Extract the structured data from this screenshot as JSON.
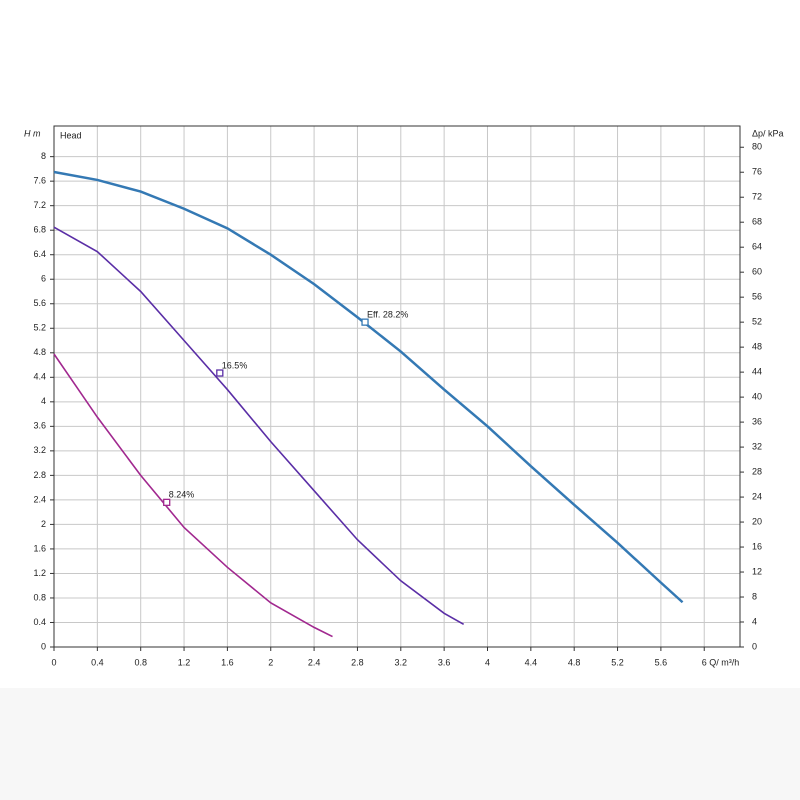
{
  "chart_data": {
    "type": "line",
    "title": "Head",
    "x_label": "Q/ m³/h",
    "y_label": "H m",
    "y2_label": "Δp/ kPa",
    "xlim": [
      0,
      6.33
    ],
    "ylim": [
      0,
      8.5
    ],
    "y2lim": [
      0,
      83.4
    ],
    "xticks": [
      0,
      0.4,
      0.8,
      1.2,
      1.6,
      2,
      2.4,
      2.8,
      3.2,
      3.6,
      4,
      4.4,
      4.8,
      5.2,
      5.6,
      6
    ],
    "yticks": [
      0,
      0.4,
      0.8,
      1.2,
      1.6,
      2,
      2.4,
      2.8,
      3.2,
      3.6,
      4,
      4.4,
      4.8,
      5.2,
      5.6,
      6,
      6.4,
      6.8,
      7.2,
      7.6,
      8
    ],
    "y2ticks": [
      0,
      4,
      8,
      12,
      16,
      20,
      24,
      28,
      32,
      36,
      40,
      44,
      48,
      52,
      56,
      60,
      64,
      68,
      72,
      76,
      80
    ],
    "grid": true,
    "series": [
      {
        "name": "Eff. 28.2%",
        "color": "#3479b4",
        "x": [
          0,
          0.4,
          0.8,
          1.2,
          1.6,
          2,
          2.4,
          2.8,
          3.2,
          3.6,
          4,
          4.4,
          4.8,
          5.2,
          5.6,
          5.8
        ],
        "y": [
          7.75,
          7.62,
          7.43,
          7.15,
          6.83,
          6.4,
          5.92,
          5.38,
          4.82,
          4.2,
          3.6,
          2.95,
          2.32,
          1.7,
          1.05,
          0.73
        ],
        "marker": {
          "x": 2.87,
          "y": 5.3
        }
      },
      {
        "name": "16.5%",
        "color": "#5a2ea6",
        "x": [
          0,
          0.4,
          0.8,
          1.2,
          1.6,
          2,
          2.4,
          2.8,
          3.2,
          3.6,
          3.78
        ],
        "y": [
          6.85,
          6.45,
          5.8,
          5.0,
          4.2,
          3.35,
          2.55,
          1.75,
          1.08,
          0.55,
          0.37
        ],
        "marker": {
          "x": 1.53,
          "y": 4.47
        }
      },
      {
        "name": "8.24%",
        "color": "#a1288f",
        "x": [
          0,
          0.4,
          0.8,
          1.2,
          1.6,
          2,
          2.4,
          2.57
        ],
        "y": [
          4.78,
          3.75,
          2.8,
          1.95,
          1.3,
          0.72,
          0.32,
          0.17
        ],
        "marker": {
          "x": 1.04,
          "y": 2.36
        }
      }
    ]
  }
}
